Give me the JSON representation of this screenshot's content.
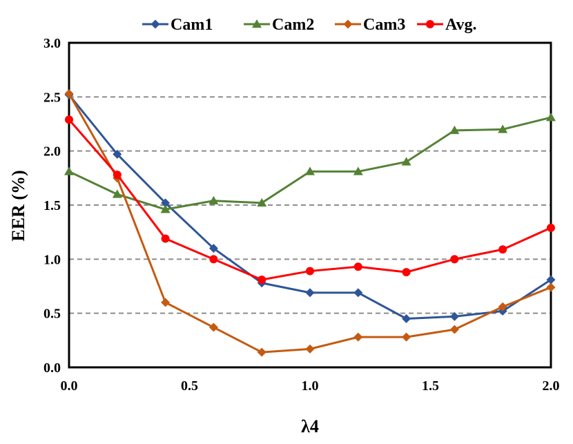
{
  "chart_data": {
    "type": "line",
    "title": "",
    "xlabel": "λ4",
    "ylabel": "EER (%)",
    "xlim": [
      0.0,
      2.0
    ],
    "ylim": [
      0.0,
      3.0
    ],
    "x_ticks": [
      "0.0",
      "0.5",
      "1.0",
      "1.5",
      "2.0"
    ],
    "x_tick_values": [
      0.0,
      0.5,
      1.0,
      1.5,
      2.0
    ],
    "y_ticks": [
      "0.0",
      "0.5",
      "1.0",
      "1.5",
      "2.0",
      "2.5",
      "3.0"
    ],
    "y_tick_values": [
      0.0,
      0.5,
      1.0,
      1.5,
      2.0,
      2.5,
      3.0
    ],
    "grid": "horizontal-dashed",
    "legend_position": "top",
    "x": [
      0.0,
      0.2,
      0.4,
      0.6,
      0.8,
      1.0,
      1.2,
      1.4,
      1.6,
      1.8,
      2.0
    ],
    "series": [
      {
        "name": "Cam1",
        "color": "#2e5597",
        "marker": "diamond",
        "values": [
          2.52,
          1.97,
          1.52,
          1.1,
          0.78,
          0.69,
          0.69,
          0.45,
          0.47,
          0.52,
          0.81
        ]
      },
      {
        "name": "Cam2",
        "color": "#548235",
        "marker": "triangle",
        "values": [
          1.81,
          1.6,
          1.46,
          1.54,
          1.52,
          1.81,
          1.81,
          1.9,
          2.19,
          2.2,
          2.31
        ]
      },
      {
        "name": "Cam3",
        "color": "#c55a11",
        "marker": "diamond",
        "values": [
          2.53,
          1.75,
          0.6,
          0.37,
          0.14,
          0.17,
          0.28,
          0.28,
          0.35,
          0.56,
          0.74
        ]
      },
      {
        "name": "Avg.",
        "color": "#ff0000",
        "marker": "circle",
        "values": [
          2.29,
          1.78,
          1.19,
          1.0,
          0.81,
          0.89,
          0.93,
          0.88,
          1.0,
          1.09,
          1.29
        ]
      }
    ]
  }
}
